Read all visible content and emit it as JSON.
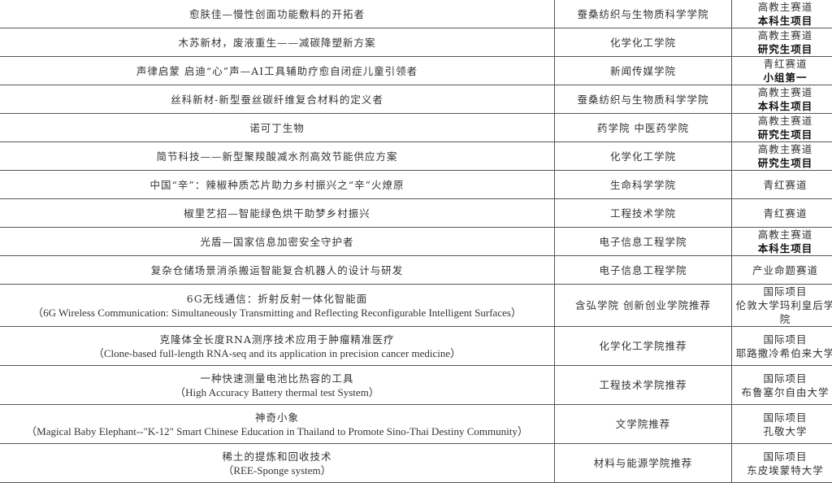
{
  "rows": [
    {
      "project": [
        "愈肤佳—慢性创面功能敷料的开拓者"
      ],
      "college": "蚕桑纺织与生物质科学学院",
      "track": [
        "高教主赛道"
      ],
      "track_bold": "本科生项目"
    },
    {
      "project": [
        "木苏新材，废液重生——减碳降塑新方案"
      ],
      "college": "化学化工学院",
      "track": [
        "高教主赛道"
      ],
      "track_bold": "研究生项目"
    },
    {
      "project": [
        "声律启蒙 启迪“心”声—AI工具辅助疗愈自闭症儿童引领者"
      ],
      "college": "新闻传媒学院",
      "track": [
        "青红赛道"
      ],
      "track_bold": "小组第一"
    },
    {
      "project": [
        "丝科新材-新型蚕丝碳纤维复合材料的定义者"
      ],
      "college": "蚕桑纺织与生物质科学学院",
      "track": [
        "高教主赛道"
      ],
      "track_bold": "本科生项目"
    },
    {
      "project": [
        "诺可丁生物"
      ],
      "college": "药学院 中医药学院",
      "track": [
        "高教主赛道"
      ],
      "track_bold": "研究生项目"
    },
    {
      "project": [
        "简节科技——新型聚羧酸减水剂高效节能供应方案"
      ],
      "college": "化学化工学院",
      "track": [
        "高教主赛道"
      ],
      "track_bold": "研究生项目"
    },
    {
      "project": [
        "中国“辛”：辣椒种质芯片助力乡村振兴之“辛”火燎原"
      ],
      "college": "生命科学学院",
      "track": [
        "青红赛道"
      ],
      "track_bold": ""
    },
    {
      "project": [
        "椒里艺招—智能绿色烘干助梦乡村振兴"
      ],
      "college": "工程技术学院",
      "track": [
        "青红赛道"
      ],
      "track_bold": ""
    },
    {
      "project": [
        "光盾—国家信息加密安全守护者"
      ],
      "college": "电子信息工程学院",
      "track": [
        "高教主赛道"
      ],
      "track_bold": "本科生项目"
    },
    {
      "project": [
        "复杂仓储场景消杀搬运智能复合机器人的设计与研发"
      ],
      "college": "电子信息工程学院",
      "track": [
        "产业命题赛道"
      ],
      "track_bold": ""
    },
    {
      "project": [
        "6G无线通信：折射反射一体化智能面",
        "（6G Wireless Communication: Simultaneously Transmitting and Reflecting Reconfigurable Intelligent Surfaces）"
      ],
      "college": "含弘学院 创新创业学院推荐",
      "track": [
        "国际项目",
        "伦敦大学玛利皇后学院"
      ],
      "track_bold": ""
    },
    {
      "project": [
        "克隆体全长度RNA测序技术应用于肿瘤精准医疗",
        "（Clone-based full-length RNA-seq and its application in precision cancer medicine）"
      ],
      "college": "化学化工学院推荐",
      "track": [
        "国际项目",
        "耶路撒冷希伯来大学"
      ],
      "track_bold": ""
    },
    {
      "project": [
        "一种快速测量电池比热容的工具",
        "（High Accuracy Battery thermal test System）"
      ],
      "college": "工程技术学院推荐",
      "track": [
        "国际项目",
        "布鲁塞尔自由大学"
      ],
      "track_bold": ""
    },
    {
      "project": [
        "神奇小象",
        "（Magical Baby Elephant--\"K-12\" Smart Chinese Education in Thailand to Promote Sino-Thai Destiny Community）"
      ],
      "college": "文学院推荐",
      "track": [
        "国际项目",
        "孔敬大学"
      ],
      "track_bold": ""
    },
    {
      "project": [
        "稀土的提炼和回收技术",
        "（REE-Sponge system）"
      ],
      "college": "材料与能源学院推荐",
      "track": [
        "国际项目",
        "东皮埃蒙特大学"
      ],
      "track_bold": ""
    }
  ]
}
